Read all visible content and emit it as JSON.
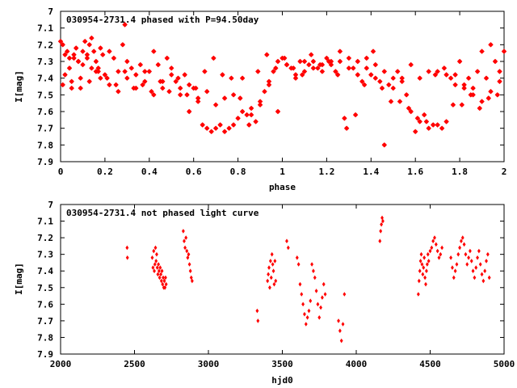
{
  "chart_data": [
    {
      "type": "scatter",
      "title": "030954-2731.4 phased with P=94.50day",
      "xlabel": "phase",
      "ylabel": "I[mag]",
      "xlim": [
        0,
        2
      ],
      "ylim": [
        7.9,
        7.0
      ],
      "y_inverted": true,
      "x_ticks": [
        "0",
        "0.2",
        "0.4",
        "0.6",
        "0.8",
        "1",
        "1.2",
        "1.4",
        "1.6",
        "1.8",
        "2"
      ],
      "y_ticks": [
        "7",
        "7.1",
        "7.2",
        "7.3",
        "7.4",
        "7.5",
        "7.6",
        "7.7",
        "7.8",
        "7.9"
      ],
      "grid": false,
      "color": "#ff0000",
      "marker": "star",
      "series": [
        {
          "x": [
            0.0,
            0.01,
            0.02,
            0.03,
            0.04,
            0.05,
            0.06,
            0.07,
            0.08,
            0.09,
            0.1,
            0.11,
            0.12,
            0.13,
            0.14,
            0.15,
            0.16,
            0.17,
            0.18,
            0.19,
            0.2,
            0.22,
            0.24,
            0.26,
            0.28,
            0.29,
            0.3,
            0.32,
            0.34,
            0.36,
            0.38,
            0.4,
            0.42,
            0.44,
            0.46,
            0.48,
            0.5,
            0.52,
            0.54,
            0.56,
            0.58,
            0.6,
            0.62,
            0.64,
            0.66,
            0.68,
            0.7,
            0.72,
            0.74,
            0.76,
            0.78,
            0.8,
            0.82,
            0.84,
            0.86,
            0.88,
            0.9,
            0.92,
            0.94,
            0.96,
            0.98,
            1.0,
            1.02,
            1.04,
            1.06,
            1.08,
            1.1,
            1.12,
            1.14,
            1.16,
            1.18,
            1.2,
            1.22,
            1.24,
            1.26,
            1.28,
            1.3,
            1.32,
            1.34,
            1.36,
            1.38,
            1.4,
            1.42,
            1.44,
            1.46,
            1.48,
            1.5,
            1.52,
            1.54,
            1.56,
            1.58,
            1.6,
            1.62,
            1.64,
            1.66,
            1.68,
            1.7,
            1.72,
            1.74,
            1.76,
            1.78,
            1.8,
            1.82,
            1.84,
            1.86,
            1.88,
            1.9,
            1.92,
            1.94,
            1.96,
            1.98,
            2.0,
            0.02,
            0.04,
            0.06,
            0.08,
            0.1,
            0.12,
            0.14,
            0.16,
            0.18,
            0.22,
            0.26,
            0.3,
            0.34,
            0.38,
            0.42,
            0.46,
            0.5,
            0.54,
            0.58,
            0.62,
            0.66,
            0.7,
            0.74,
            0.78,
            0.82,
            0.86,
            0.9,
            0.94,
            0.98,
            1.02,
            1.06,
            1.1,
            1.14,
            1.18,
            1.22,
            1.26,
            1.3,
            1.34,
            1.38,
            1.42,
            1.46,
            1.5,
            1.54,
            1.58,
            1.62,
            1.66,
            1.7,
            1.74,
            1.78,
            1.82,
            1.86,
            1.9,
            1.94,
            1.98,
            0.01,
            0.05,
            0.09,
            0.13,
            0.17,
            0.21,
            0.25,
            0.29,
            0.33,
            0.37,
            0.41,
            0.45,
            0.49,
            0.53,
            0.57,
            0.61,
            0.65,
            0.69,
            0.73,
            0.77,
            0.81,
            0.85,
            0.89,
            0.93,
            0.97,
            1.01,
            1.05,
            1.09,
            1.13,
            1.17,
            1.21,
            1.25,
            1.29,
            1.33,
            1.37,
            1.41,
            1.45,
            1.49,
            1.53,
            1.57,
            1.61,
            1.65,
            1.69,
            1.73,
            1.77,
            1.81,
            1.85,
            1.89,
            1.93,
            1.97
          ],
          "y": [
            7.18,
            7.2,
            7.38,
            7.24,
            7.28,
            7.42,
            7.26,
            7.22,
            7.3,
            7.46,
            7.24,
            7.18,
            7.28,
            7.2,
            7.16,
            7.24,
            7.3,
            7.34,
            7.22,
            7.26,
            7.38,
            7.24,
            7.28,
            7.36,
            7.2,
            7.08,
            7.3,
            7.34,
            7.38,
            7.32,
            7.42,
            7.36,
            7.24,
            7.32,
            7.42,
            7.28,
            7.34,
            7.42,
            7.46,
            7.38,
            7.44,
            7.46,
            7.52,
            7.68,
            7.7,
            7.72,
            7.7,
            7.68,
            7.72,
            7.7,
            7.68,
            7.64,
            7.6,
            7.62,
            7.58,
            7.66,
            7.54,
            7.48,
            7.42,
            7.36,
            7.3,
            7.28,
            7.32,
            7.34,
            7.38,
            7.3,
            7.36,
            7.32,
            7.3,
            7.34,
            7.36,
            7.28,
            7.32,
            7.36,
            7.3,
            7.64,
            7.28,
            7.34,
            7.38,
            7.42,
            7.28,
            7.38,
            7.4,
            7.42,
            7.8,
            7.44,
            7.4,
            7.36,
            7.42,
            7.5,
            7.6,
            7.72,
            7.66,
            7.62,
            7.7,
            7.68,
            7.68,
            7.7,
            7.66,
            7.4,
            7.38,
            7.3,
            7.46,
            7.4,
            7.5,
            7.36,
            7.24,
            7.4,
            7.2,
            7.3,
            7.36,
            7.24,
            7.26,
            7.34,
            7.28,
            7.3,
            7.32,
            7.26,
            7.34,
            7.36,
            7.4,
            7.44,
            7.48,
            7.4,
            7.46,
            7.36,
            7.5,
            7.46,
            7.38,
            7.5,
            7.6,
            7.54,
            7.48,
            7.56,
            7.52,
            7.5,
            7.4,
            7.62,
            7.56,
            7.44,
            7.6,
            7.32,
            7.4,
            7.3,
            7.34,
            7.32,
            7.3,
            7.24,
            7.34,
            7.3,
            7.34,
            7.32,
            7.36,
            7.46,
            7.4,
            7.32,
            7.4,
            7.36,
            7.36,
            7.38,
            7.44,
            7.44,
            7.46,
            7.54,
            7.48,
            7.42,
            7.44,
            7.46,
            7.4,
            7.42,
            7.36,
            7.4,
            7.44,
            7.36,
            7.46,
            7.44,
            7.48,
            7.42,
            7.48,
            7.4,
            7.5,
            7.46,
            7.36,
            7.28,
            7.38,
            7.4,
            7.52,
            7.68,
            7.36,
            7.26,
            7.34,
            7.28,
            7.34,
            7.38,
            7.26,
            7.32,
            7.3,
            7.38,
            7.7,
            7.62,
            7.44,
            7.24,
            7.46,
            7.54,
            7.54,
            7.58,
            7.64,
            7.66,
            7.38,
            7.34,
            7.56,
            7.56,
            7.5,
            7.58,
            7.52,
            7.5
          ]
        }
      ]
    },
    {
      "type": "scatter",
      "title": "030954-2731.4 not phased light curve",
      "xlabel": "hjd0",
      "ylabel": "I[mag]",
      "xlim": [
        2000,
        5000
      ],
      "ylim": [
        7.9,
        7.0
      ],
      "y_inverted": true,
      "x_ticks": [
        "2000",
        "2500",
        "3000",
        "3500",
        "4000",
        "4500",
        "5000"
      ],
      "y_ticks": [
        "7",
        "7.1",
        "7.2",
        "7.3",
        "7.4",
        "7.5",
        "7.6",
        "7.7",
        "7.8",
        "7.9"
      ],
      "grid": false,
      "color": "#ff0000",
      "marker": "diamond",
      "series": [
        {
          "x": [
            2450,
            2452,
            2620,
            2625,
            2630,
            2634,
            2638,
            2642,
            2646,
            2650,
            2654,
            2658,
            2662,
            2666,
            2670,
            2674,
            2678,
            2682,
            2686,
            2690,
            2694,
            2698,
            2702,
            2706,
            2710,
            2714,
            2830,
            2836,
            2842,
            2848,
            2854,
            2860,
            2866,
            2872,
            2878,
            2884,
            2890,
            3330,
            3335,
            3400,
            3405,
            3410,
            3415,
            3420,
            3425,
            3430,
            3435,
            3440,
            3445,
            3450,
            3455,
            3530,
            3540,
            3600,
            3610,
            3620,
            3630,
            3640,
            3650,
            3660,
            3670,
            3680,
            3690,
            3700,
            3710,
            3720,
            3730,
            3740,
            3750,
            3760,
            3770,
            3780,
            3790,
            3880,
            3890,
            3900,
            3910,
            3920,
            4160,
            4165,
            4170,
            4175,
            4180,
            4420,
            4425,
            4430,
            4435,
            4440,
            4445,
            4450,
            4455,
            4460,
            4465,
            4470,
            4475,
            4480,
            4485,
            4490,
            4500,
            4510,
            4520,
            4530,
            4540,
            4550,
            4560,
            4570,
            4580,
            4640,
            4650,
            4660,
            4670,
            4680,
            4690,
            4700,
            4710,
            4720,
            4730,
            4740,
            4750,
            4760,
            4770,
            4780,
            4790,
            4800,
            4810,
            4820,
            4830,
            4840,
            4850,
            4860,
            4870,
            4880,
            4890,
            4900
          ],
          "y": [
            7.26,
            7.32,
            7.32,
            7.38,
            7.28,
            7.4,
            7.36,
            7.26,
            7.34,
            7.3,
            7.38,
            7.42,
            7.36,
            7.4,
            7.44,
            7.38,
            7.42,
            7.46,
            7.4,
            7.48,
            7.44,
            7.5,
            7.46,
            7.5,
            7.44,
            7.48,
            7.16,
            7.22,
            7.26,
            7.2,
            7.28,
            7.32,
            7.3,
            7.36,
            7.4,
            7.44,
            7.46,
            7.64,
            7.7,
            7.46,
            7.42,
            7.38,
            7.5,
            7.34,
            7.44,
            7.3,
            7.36,
            7.4,
            7.48,
            7.34,
            7.46,
            7.22,
            7.26,
            7.32,
            7.36,
            7.48,
            7.54,
            7.6,
            7.66,
            7.72,
            7.68,
            7.64,
            7.58,
            7.36,
            7.4,
            7.44,
            7.52,
            7.6,
            7.68,
            7.62,
            7.56,
            7.48,
            7.54,
            7.7,
            7.76,
            7.82,
            7.72,
            7.54,
            7.22,
            7.16,
            7.12,
            7.08,
            7.1,
            7.54,
            7.46,
            7.4,
            7.34,
            7.3,
            7.36,
            7.42,
            7.38,
            7.32,
            7.44,
            7.48,
            7.4,
            7.36,
            7.3,
            7.34,
            7.28,
            7.26,
            7.22,
            7.2,
            7.24,
            7.28,
            7.32,
            7.3,
            7.26,
            7.32,
            7.38,
            7.44,
            7.4,
            7.36,
            7.3,
            7.26,
            7.22,
            7.2,
            7.24,
            7.3,
            7.36,
            7.32,
            7.28,
            7.34,
            7.4,
            7.44,
            7.38,
            7.32,
            7.28,
            7.36,
            7.42,
            7.46,
            7.4,
            7.34,
            7.3,
            7.44
          ]
        }
      ]
    }
  ]
}
